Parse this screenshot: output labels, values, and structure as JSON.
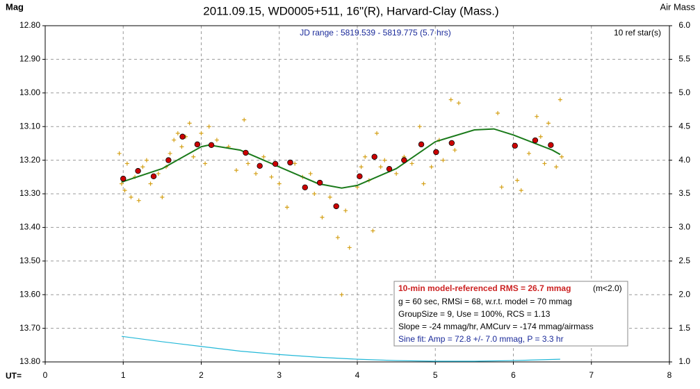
{
  "chart_data": {
    "type": "scatter",
    "title": "2011.09.15, WD0005+511, 16\"(R), Harvard-Clay (Mass.)",
    "subtitle": "JD range : 5819.539 - 5819.775 (5.7 hrs)",
    "ref_stars": "10 ref star(s)",
    "ylabel": "Mag",
    "y2label": "Air Mass",
    "xlabel": "UT=",
    "xlim": [
      0,
      8
    ],
    "xticks": [
      0,
      1,
      2,
      3,
      4,
      5,
      6,
      7,
      8
    ],
    "ylim": [
      13.8,
      12.8
    ],
    "yticks": [
      {
        "value": 12.8,
        "label": "12.80"
      },
      {
        "value": 12.9,
        "label": "12.90"
      },
      {
        "value": 13.0,
        "label": "13.00"
      },
      {
        "value": 13.1,
        "label": "13.10"
      },
      {
        "value": 13.2,
        "label": "13.20"
      },
      {
        "value": 13.3,
        "label": "13.30"
      },
      {
        "value": 13.4,
        "label": "13.40"
      },
      {
        "value": 13.5,
        "label": "13.50"
      },
      {
        "value": 13.6,
        "label": "13.60"
      },
      {
        "value": 13.7,
        "label": "13.70"
      },
      {
        "value": 13.8,
        "label": "13.80"
      }
    ],
    "y2lim": [
      1.0,
      6.0
    ],
    "y2ticks": [
      {
        "value": 1.0,
        "label": "1.0"
      },
      {
        "value": 1.5,
        "label": "1.5"
      },
      {
        "value": 2.0,
        "label": "2.0"
      },
      {
        "value": 2.5,
        "label": "2.5"
      },
      {
        "value": 3.0,
        "label": "3.0"
      },
      {
        "value": 3.5,
        "label": "3.5"
      },
      {
        "value": 4.0,
        "label": "4.0"
      },
      {
        "value": 4.5,
        "label": "4.5"
      },
      {
        "value": 5.0,
        "label": "5.0"
      },
      {
        "value": 5.5,
        "label": "5.5"
      },
      {
        "value": 6.0,
        "label": "6.0"
      }
    ],
    "grid": true,
    "observations": {
      "color": "#d4a017",
      "x": [
        0.95,
        0.98,
        1.02,
        1.05,
        1.1,
        1.15,
        1.2,
        1.25,
        1.3,
        1.35,
        1.45,
        1.5,
        1.55,
        1.6,
        1.65,
        1.7,
        1.75,
        1.8,
        1.85,
        1.9,
        2.0,
        2.05,
        2.1,
        2.2,
        2.35,
        2.45,
        2.55,
        2.6,
        2.7,
        2.8,
        2.9,
        3.0,
        3.1,
        3.2,
        3.3,
        3.4,
        3.45,
        3.55,
        3.65,
        3.75,
        3.8,
        3.85,
        3.9,
        4.0,
        4.05,
        4.1,
        4.15,
        4.2,
        4.25,
        4.3,
        4.35,
        4.5,
        4.6,
        4.7,
        4.8,
        4.85,
        4.95,
        5.05,
        5.1,
        5.2,
        5.25,
        5.3,
        5.8,
        5.85,
        6.05,
        6.1,
        6.2,
        6.3,
        6.35,
        6.4,
        6.45,
        6.55,
        6.6,
        6.62
      ],
      "values": [
        13.18,
        13.27,
        13.29,
        13.21,
        13.31,
        13.25,
        13.32,
        13.22,
        13.2,
        13.27,
        13.24,
        13.31,
        13.22,
        13.18,
        13.14,
        13.12,
        13.16,
        13.13,
        13.09,
        13.19,
        13.12,
        13.21,
        13.1,
        13.14,
        13.16,
        13.23,
        13.08,
        13.21,
        13.24,
        13.19,
        13.25,
        13.27,
        13.34,
        13.21,
        13.25,
        13.24,
        13.3,
        13.37,
        13.31,
        13.43,
        13.6,
        13.35,
        13.46,
        13.28,
        13.22,
        13.19,
        13.26,
        13.41,
        13.12,
        13.22,
        13.2,
        13.24,
        13.19,
        13.21,
        13.1,
        13.27,
        13.22,
        13.14,
        13.2,
        13.02,
        13.17,
        13.03,
        13.06,
        13.28,
        13.26,
        13.29,
        13.18,
        13.07,
        13.13,
        13.21,
        13.09,
        13.22,
        13.02,
        13.19
      ]
    },
    "group_means": {
      "color": "#cc0000",
      "x": [
        1.0,
        1.19,
        1.39,
        1.58,
        1.76,
        1.95,
        2.13,
        2.57,
        2.75,
        2.95,
        3.14,
        3.33,
        3.52,
        3.73,
        4.03,
        4.22,
        4.41,
        4.6,
        4.82,
        5.01,
        5.21,
        6.02,
        6.28,
        6.48
      ],
      "values": [
        13.255,
        13.232,
        13.248,
        13.2,
        13.13,
        13.153,
        13.155,
        13.178,
        13.217,
        13.211,
        13.207,
        13.281,
        13.267,
        13.337,
        13.248,
        13.19,
        13.226,
        13.2,
        13.153,
        13.176,
        13.149,
        13.157,
        13.141,
        13.155
      ]
    },
    "model": {
      "color": "#1a7a1a",
      "x": [
        0.98,
        1.5,
        2.0,
        2.1,
        2.5,
        3.0,
        3.5,
        3.8,
        4.0,
        4.5,
        5.0,
        5.5,
        5.75,
        6.0,
        6.5,
        6.6
      ],
      "values": [
        13.265,
        13.225,
        13.16,
        13.155,
        13.17,
        13.22,
        13.27,
        13.283,
        13.275,
        13.225,
        13.145,
        13.11,
        13.107,
        13.125,
        13.17,
        13.183
      ]
    },
    "airmass": {
      "color": "#22b8d8",
      "axis": "y2",
      "x": [
        0.98,
        1.5,
        2.0,
        2.5,
        3.0,
        3.5,
        4.0,
        4.5,
        5.0,
        5.5,
        6.0,
        6.6
      ],
      "values": [
        1.38,
        1.3,
        1.23,
        1.16,
        1.11,
        1.07,
        1.04,
        1.02,
        1.01,
        1.01,
        1.02,
        1.04
      ]
    },
    "info_box": {
      "rms_line": "10-min model-referenced RMS = 26.7 mmag",
      "rms_note": "(m<2.0)",
      "lines": [
        "g = 60 sec, RMSi = 68, w.r.t. model = 70 mmag",
        "GroupSize = 9, Use = 100%, RCS = 1.13",
        "Slope = -24 mmag/hr, AMCurv = -174 mmag/airmass"
      ],
      "sine_fit": "Sine fit: Amp = 72.8 +/- 7.0 mmag, P = 3.3 hr"
    }
  }
}
